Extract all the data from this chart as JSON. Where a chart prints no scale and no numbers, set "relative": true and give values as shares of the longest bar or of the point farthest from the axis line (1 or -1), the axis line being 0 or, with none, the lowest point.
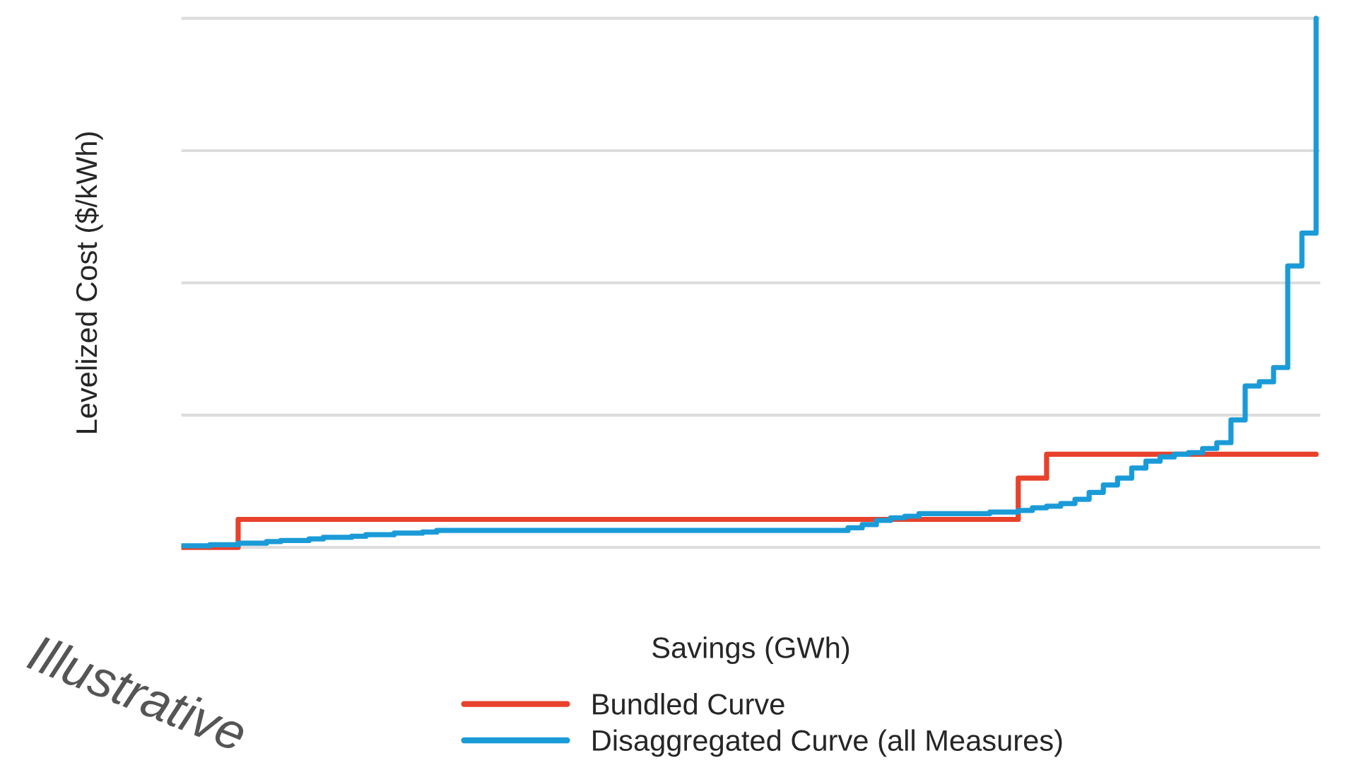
{
  "chart_data": {
    "type": "step",
    "relative": true,
    "xlabel": "Savings (GWh)",
    "ylabel": "Levelized Cost ($/kWh)",
    "annotations": [
      "Illustrative"
    ],
    "categories": [
      null,
      null,
      null,
      null,
      null,
      null,
      null,
      null,
      null,
      null,
      null,
      null,
      null,
      null,
      null,
      null,
      null,
      null,
      null,
      null,
      null,
      null,
      null,
      null,
      null,
      null,
      null,
      null,
      null,
      null,
      null,
      null,
      null,
      null,
      null,
      null,
      null,
      null,
      null,
      null,
      null,
      null,
      null,
      null,
      null,
      null,
      null,
      null,
      null,
      null,
      null,
      null,
      null,
      null,
      null,
      null,
      null,
      null,
      null,
      null,
      null,
      null,
      null,
      null,
      null,
      null,
      null,
      null,
      null,
      null,
      null,
      null,
      null,
      null,
      null,
      null,
      null,
      null,
      null,
      null,
      null
    ],
    "series": [
      {
        "name": "Bundled Curve",
        "color": "#e8412c",
        "values": [
          0,
          0,
          0,
          0,
          0.053,
          0.053,
          0.053,
          0.053,
          0.053,
          0.053,
          0.053,
          0.053,
          0.053,
          0.053,
          0.053,
          0.053,
          0.053,
          0.053,
          0.053,
          0.053,
          0.053,
          0.053,
          0.053,
          0.053,
          0.053,
          0.053,
          0.053,
          0.053,
          0.053,
          0.053,
          0.053,
          0.053,
          0.053,
          0.053,
          0.053,
          0.053,
          0.053,
          0.053,
          0.053,
          0.053,
          0.053,
          0.053,
          0.053,
          0.053,
          0.053,
          0.053,
          0.053,
          0.053,
          0.053,
          0.053,
          0.053,
          0.053,
          0.053,
          0.053,
          0.053,
          0.053,
          0.053,
          0.053,
          0.053,
          0.131,
          0.131,
          0.176,
          0.176,
          0.176,
          0.176,
          0.176,
          0.176,
          0.176,
          0.176,
          0.176,
          0.176,
          0.176,
          0.176,
          0.176,
          0.176,
          0.176,
          0.176,
          0.176,
          0.176,
          0.176,
          0.176
        ]
      },
      {
        "name": "Disaggregated Curve (all Measures)",
        "color": "#1a9bd7",
        "values": [
          0.003,
          0.003,
          0.005,
          0.005,
          0.008,
          0.008,
          0.011,
          0.013,
          0.013,
          0.016,
          0.019,
          0.019,
          0.021,
          0.024,
          0.024,
          0.027,
          0.027,
          0.029,
          0.032,
          0.032,
          0.032,
          0.032,
          0.032,
          0.032,
          0.032,
          0.032,
          0.032,
          0.032,
          0.032,
          0.032,
          0.032,
          0.032,
          0.032,
          0.032,
          0.032,
          0.032,
          0.032,
          0.032,
          0.032,
          0.032,
          0.032,
          0.032,
          0.032,
          0.032,
          0.032,
          0.032,
          0.032,
          0.037,
          0.043,
          0.051,
          0.056,
          0.059,
          0.064,
          0.064,
          0.064,
          0.064,
          0.064,
          0.067,
          0.067,
          0.07,
          0.075,
          0.078,
          0.083,
          0.091,
          0.104,
          0.118,
          0.131,
          0.15,
          0.163,
          0.171,
          0.176,
          0.179,
          0.187,
          0.198,
          0.241,
          0.305,
          0.313,
          0.34,
          0.532,
          0.594,
          1.0
        ]
      }
    ],
    "grid": "y",
    "legend": "bottom",
    "tick_labels": false,
    "line_style": "solid"
  }
}
